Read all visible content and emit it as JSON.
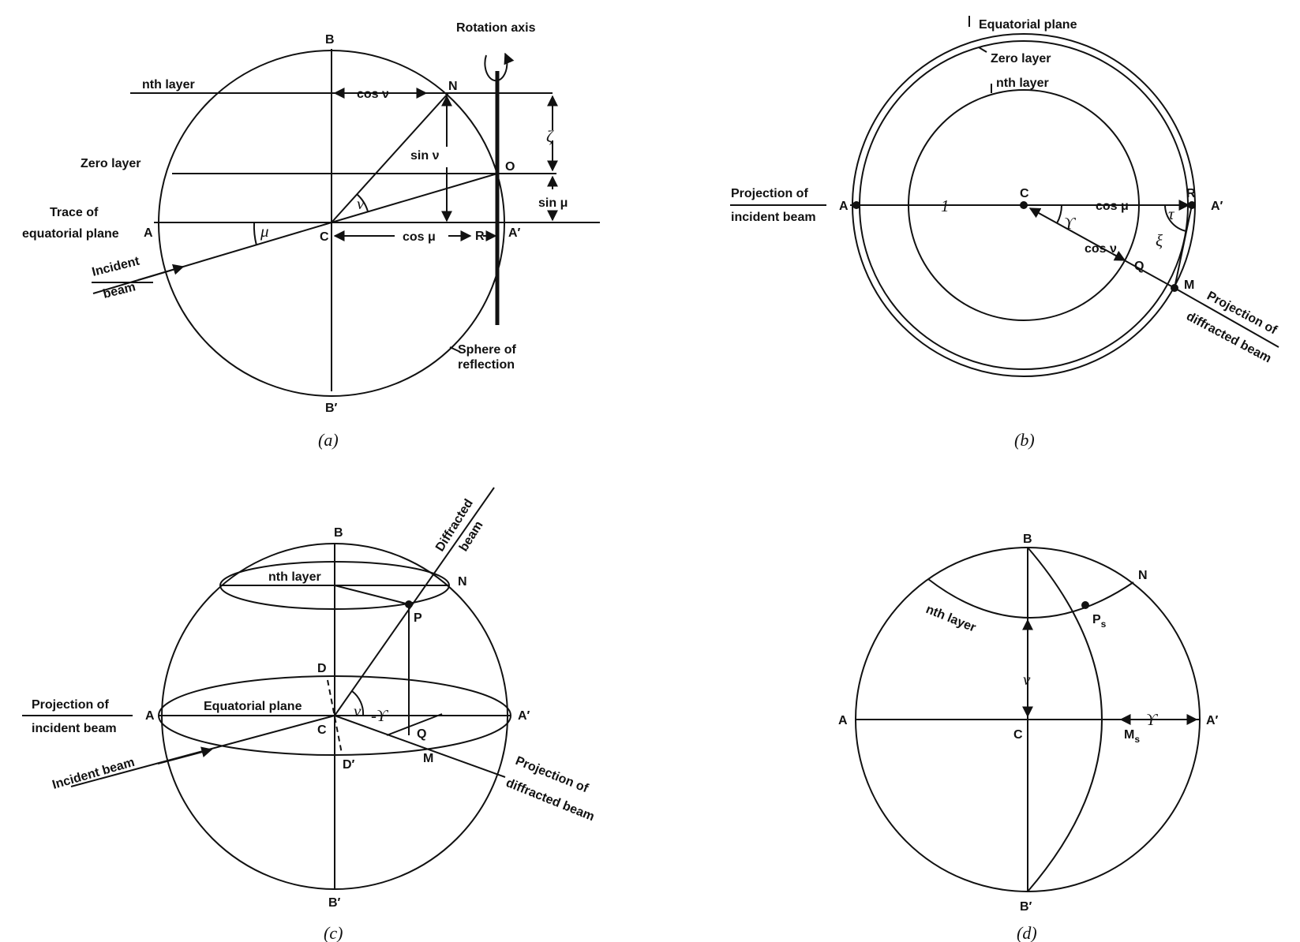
{
  "panel_a": {
    "caption": "(a)",
    "point_B": "B",
    "point_B_prime": "B′",
    "point_N": "N",
    "point_O": "O",
    "point_A": "A",
    "point_A_prime": "A′",
    "point_C": "C",
    "point_R": "R",
    "rotation_axis": "Rotation axis",
    "nth_layer": "nth layer",
    "zero_layer": "Zero layer",
    "trace_line1": "Trace of",
    "trace_line2": "equatorial plane",
    "incident_line1": "Incident",
    "incident_line2": "beam",
    "sphere_line1": "Sphere of",
    "sphere_line2": "reflection",
    "cos_nu": "cos ν",
    "sin_nu": "sin ν",
    "cos_mu": "cos μ",
    "sin_mu": "sin μ",
    "zeta": "ζ",
    "nu": "ν",
    "mu": "μ"
  },
  "panel_b": {
    "caption": "(b)",
    "equatorial_plane": "Equatorial plane",
    "zero_layer": "Zero layer",
    "nth_layer": "nth layer",
    "proj_incident_line1": "Projection of",
    "proj_incident_line2": "incident beam",
    "point_A": "A",
    "point_A_prime": "A′",
    "point_C": "C",
    "point_R": "R",
    "point_Q": "Q",
    "point_M": "M",
    "one": "1",
    "cos_mu": "cos μ",
    "cos_nu": "cos ν",
    "upsilon": "ϒ",
    "tau": "τ",
    "xi": "ξ",
    "proj_diffracted_line1": "Projection of",
    "proj_diffracted_line2": "diffracted beam"
  },
  "panel_c": {
    "caption": "(c)",
    "point_B": "B",
    "point_B_prime": "B′",
    "point_N": "N",
    "point_P": "P",
    "point_D": "D",
    "point_D_prime": "D′",
    "point_A": "A",
    "point_A_prime": "A′",
    "point_C": "C",
    "point_Q": "Q",
    "point_M": "M",
    "nth_layer": "nth layer",
    "equatorial_plane": "Equatorial plane",
    "diffracted_line1": "Diffracted",
    "diffracted_line2": "beam",
    "proj_incident_line1": "Projection of",
    "proj_incident_line2": "incident beam",
    "incident_beam": "Incident beam",
    "proj_diffracted_line1": "Projection of",
    "proj_diffracted_line2": "diffracted beam",
    "nu": "ν",
    "upsilon": "-ϒ"
  },
  "panel_d": {
    "caption": "(d)",
    "point_B": "B",
    "point_B_prime": "B′",
    "point_N": "N",
    "point_A": "A",
    "point_A_prime": "A′",
    "point_C": "C",
    "point_P": "P",
    "point_P_sub": "s",
    "point_M": "M",
    "point_M_sub": "s",
    "nth_layer": "nth layer",
    "nu": "ν",
    "upsilon": "ϒ"
  }
}
